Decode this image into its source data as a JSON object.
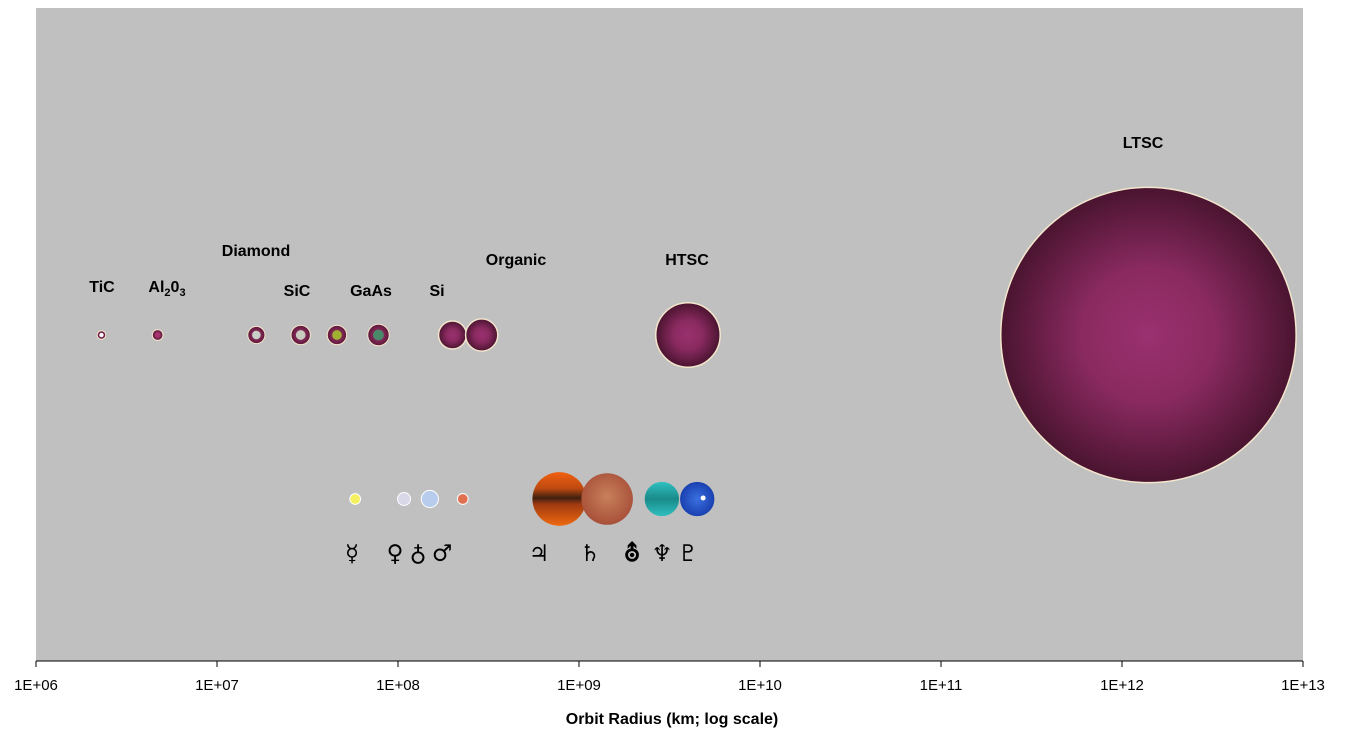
{
  "chart_data": {
    "type": "bubble",
    "xscale": "log",
    "xlabel": "Orbit Radius (km; log scale)",
    "xlim": [
      1000000.0,
      10000000000000.0
    ],
    "x_ticks": [
      "1E+06",
      "1E+07",
      "1E+08",
      "1E+09",
      "1E+10",
      "1E+11",
      "1E+12",
      "1E+13"
    ],
    "grid": false,
    "legend": "none",
    "colors": {
      "plot_bg": "#c0c0c0",
      "bubble_outer": "#4a1430",
      "bubble_inner": "#8e2c62",
      "bubble_edge": "#f4e6cc"
    },
    "series": [
      {
        "values": [
          {
            "x": 2300000.0,
            "r": 0.8,
            "core": "#ffffff",
            "glyph": "TiC"
          },
          {
            "x": 4700000.0,
            "r": 1.0,
            "core": "#a83570"
          },
          {
            "x": 16500000.0,
            "r": 1.6,
            "core": "#c8d0c8"
          },
          {
            "x": 29000000.0,
            "r": 1.8,
            "core": "#c8ccc0"
          },
          {
            "x": 46000000.0,
            "r": 1.8,
            "core": "#a0b030"
          },
          {
            "x": 78000000.0,
            "r": 2.0,
            "core": "#4a8a6a"
          },
          {
            "x": 200000000.0,
            "r": 2.6,
            "core": "#3a8a5a"
          },
          {
            "x": 290000000.0,
            "r": 3.0,
            "core": "#8e2c62"
          },
          {
            "x": 4000000000.0,
            "r": 6.0,
            "core": "#8e2c62"
          },
          {
            "x": 1400000000000.0,
            "r": 27.5,
            "core": "#8e2c62"
          }
        ]
      },
      {
        "values": [
          {
            "x": 58000000.0,
            "r": 1.0,
            "color": "#f4f060"
          },
          {
            "x": 108000000.0,
            "r": 1.2,
            "color": "#d8d8e8"
          },
          {
            "x": 150000000.0,
            "r": 1.6,
            "color": "#b8ccee"
          },
          {
            "x": 228000000.0,
            "r": 1.0,
            "color": "#e07050"
          },
          {
            "x": 778000000.0,
            "r": 5.0,
            "color": "#e06010"
          },
          {
            "x": 1430000000.0,
            "r": 4.8,
            "color": "#c46a44"
          },
          {
            "x": 2870000000.0,
            "r": 3.2,
            "color": "#30b8b8"
          },
          {
            "x": 4500000000.0,
            "r": 3.2,
            "color": "#2a60d0"
          }
        ]
      }
    ],
    "annotations": [
      {
        "text": "TiC"
      },
      {
        "text": "Al",
        "sub": "2",
        "text2": "0",
        "sub2": "3"
      },
      {
        "text": "Diamond"
      },
      {
        "text": "SiC"
      },
      {
        "text": "GaAs"
      },
      {
        "text": "Si"
      },
      {
        "text": "Organic"
      },
      {
        "text": "HTSC"
      },
      {
        "text": "LTSC"
      }
    ],
    "planet_symbols": [
      "☿",
      "♀",
      "♁",
      "♂",
      "♃",
      "♄",
      "⛢",
      "♆",
      "♇"
    ]
  }
}
